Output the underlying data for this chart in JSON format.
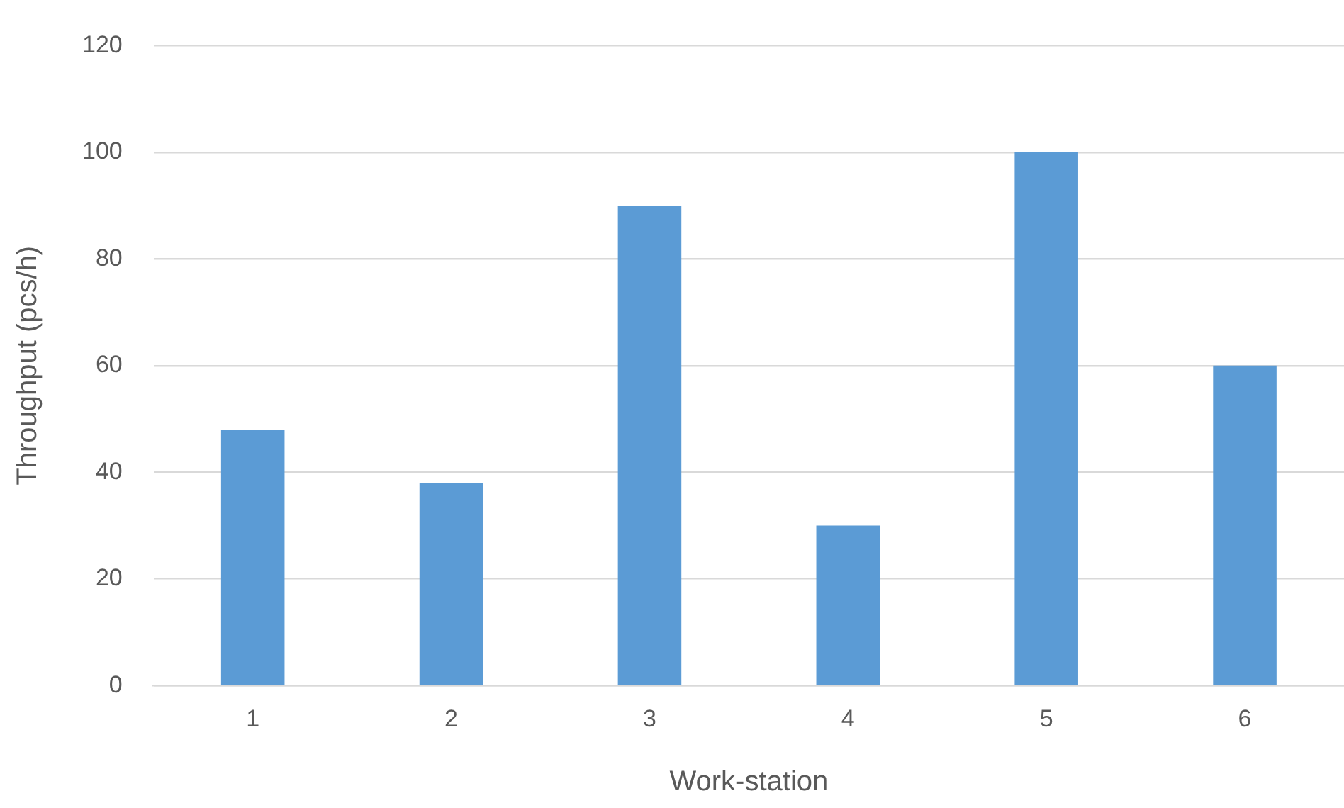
{
  "chart_data": {
    "type": "bar",
    "xlabel": "Work-station",
    "ylabel": "Throughput (pcs/h)",
    "categories": [
      "1",
      "2",
      "3",
      "4",
      "5",
      "6"
    ],
    "values": [
      48,
      38,
      90,
      30,
      100,
      60
    ],
    "color": "#5b9bd5",
    "ylim": [
      0,
      120
    ],
    "yticks": [
      0,
      20,
      40,
      60,
      80,
      100,
      120
    ],
    "grid": "y",
    "legend": false
  }
}
